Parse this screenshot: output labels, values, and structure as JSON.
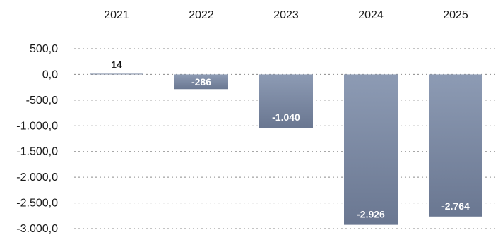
{
  "chart_data": {
    "type": "bar",
    "categories": [
      "2021",
      "2022",
      "2023",
      "2024",
      "2025"
    ],
    "values": [
      14,
      -286,
      -1040,
      -2926,
      -2764
    ],
    "data_labels": [
      "14",
      "-286",
      "-1.040",
      "-2.926",
      "-2.764"
    ],
    "y_ticks": [
      500,
      0,
      -500,
      -1000,
      -1500,
      -2000,
      -2500,
      -3000
    ],
    "y_tick_labels": [
      "500,0",
      "0,0",
      "-500,0",
      "-1.000,0",
      "-1.500,0",
      "-2.000,0",
      "-2.500,0",
      "-3.000,0"
    ],
    "ylim": [
      -3000,
      500
    ],
    "x_axis_position": "top",
    "grid": true,
    "grid_style": "dotted",
    "bar_color_top": "#8d9bb4",
    "bar_color_bottom": "#6a7791",
    "title": "",
    "xlabel": "",
    "ylabel": ""
  }
}
